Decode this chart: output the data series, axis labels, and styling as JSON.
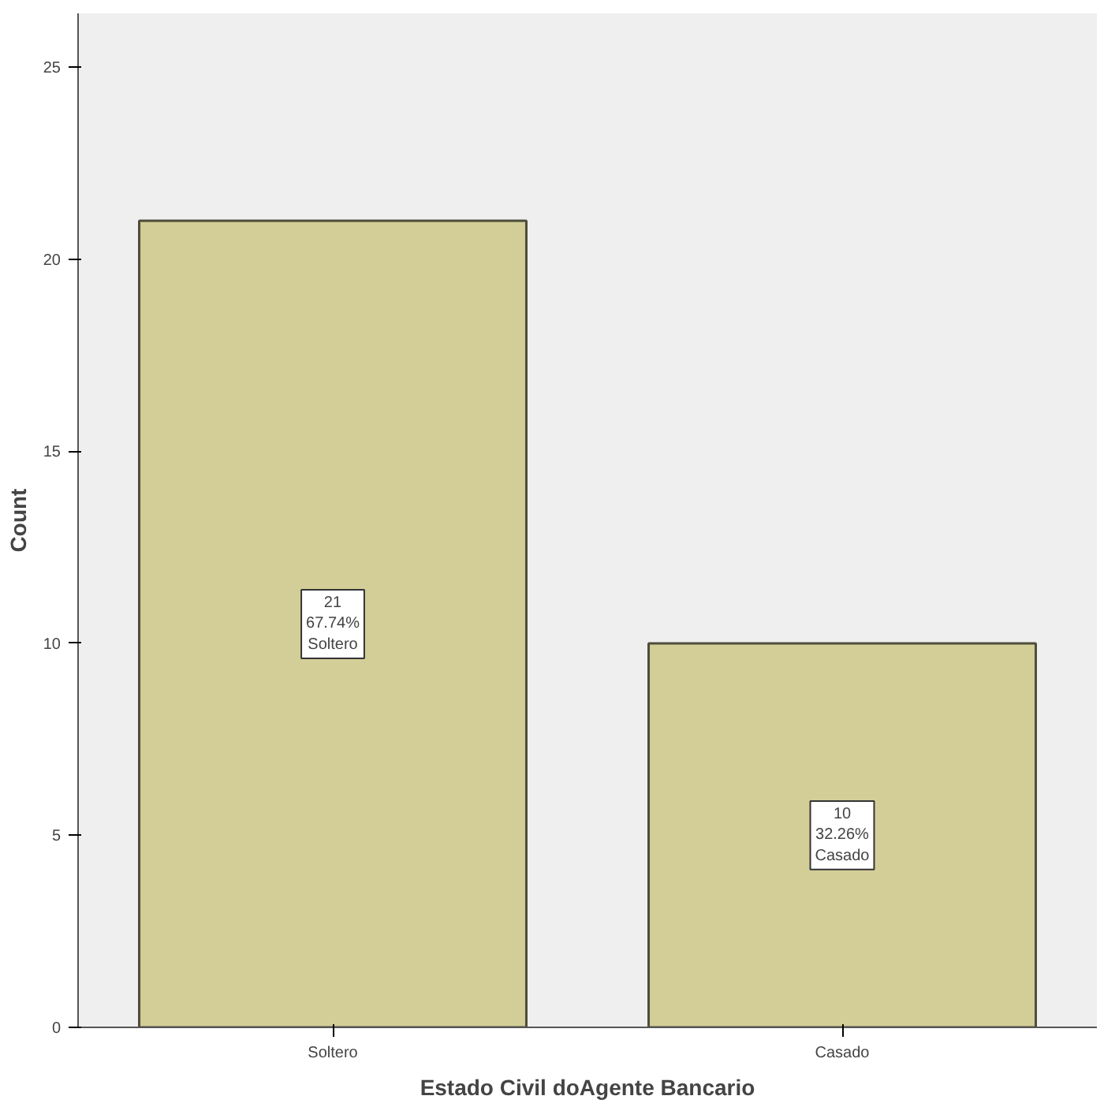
{
  "chart_data": {
    "type": "bar",
    "xlabel": "Estado Civil doAgente Bancario",
    "ylabel": "Count",
    "categories": [
      "Soltero",
      "Casado"
    ],
    "values": [
      21,
      10
    ],
    "color": "#d3ce97",
    "value_labels": [
      "21\n67.74%\nSoltero",
      "10\n32.26%\nCasado"
    ],
    "ylim": [
      0,
      26.4
    ],
    "yticks": [
      0,
      5,
      10,
      15,
      20,
      25
    ],
    "grid": false
  }
}
